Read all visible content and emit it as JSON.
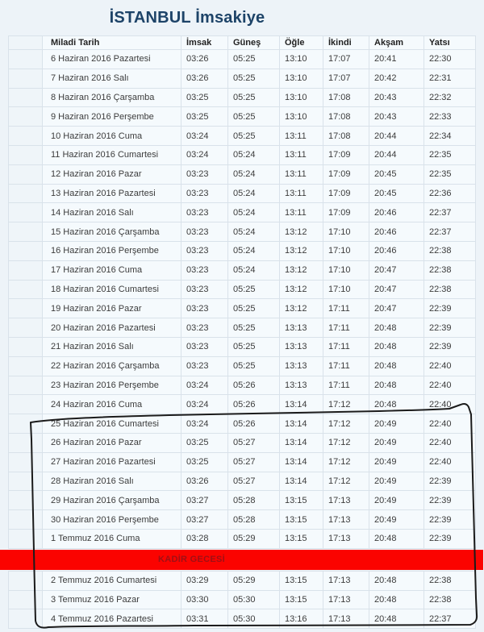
{
  "page": {
    "title": "İSTANBUL İmsakiye"
  },
  "colors": {
    "page_background": "#edf3f8",
    "title_text": "#1d4368",
    "cell_background": "#f5fafd",
    "cell_border": "#d9e2ea",
    "kadir_background": "#fb0300",
    "kadir_text": "#a01015",
    "annotation_stroke": "#1b1b1b"
  },
  "table": {
    "headers": [
      "Miladi Tarih",
      "İmsak",
      "Güneş",
      "Öğle",
      "İkindi",
      "Akşam",
      "Yatsı"
    ],
    "rows_before": [
      [
        "6 Haziran 2016 Pazartesi",
        "03:26",
        "05:25",
        "13:10",
        "17:07",
        "20:41",
        "22:30"
      ],
      [
        "7 Haziran 2016 Salı",
        "03:26",
        "05:25",
        "13:10",
        "17:07",
        "20:42",
        "22:31"
      ],
      [
        "8 Haziran 2016 Çarşamba",
        "03:25",
        "05:25",
        "13:10",
        "17:08",
        "20:43",
        "22:32"
      ],
      [
        "9 Haziran 2016 Perşembe",
        "03:25",
        "05:25",
        "13:10",
        "17:08",
        "20:43",
        "22:33"
      ],
      [
        "10 Haziran 2016 Cuma",
        "03:24",
        "05:25",
        "13:11",
        "17:08",
        "20:44",
        "22:34"
      ],
      [
        "11 Haziran 2016 Cumartesi",
        "03:24",
        "05:24",
        "13:11",
        "17:09",
        "20:44",
        "22:35"
      ],
      [
        "12 Haziran 2016 Pazar",
        "03:23",
        "05:24",
        "13:11",
        "17:09",
        "20:45",
        "22:35"
      ],
      [
        "13 Haziran 2016 Pazartesi",
        "03:23",
        "05:24",
        "13:11",
        "17:09",
        "20:45",
        "22:36"
      ],
      [
        "14 Haziran 2016 Salı",
        "03:23",
        "05:24",
        "13:11",
        "17:09",
        "20:46",
        "22:37"
      ],
      [
        "15 Haziran 2016 Çarşamba",
        "03:23",
        "05:24",
        "13:12",
        "17:10",
        "20:46",
        "22:37"
      ],
      [
        "16 Haziran 2016 Perşembe",
        "03:23",
        "05:24",
        "13:12",
        "17:10",
        "20:46",
        "22:38"
      ],
      [
        "17 Haziran 2016 Cuma",
        "03:23",
        "05:24",
        "13:12",
        "17:10",
        "20:47",
        "22:38"
      ],
      [
        "18 Haziran 2016 Cumartesi",
        "03:23",
        "05:25",
        "13:12",
        "17:10",
        "20:47",
        "22:38"
      ],
      [
        "19 Haziran 2016 Pazar",
        "03:23",
        "05:25",
        "13:12",
        "17:11",
        "20:47",
        "22:39"
      ],
      [
        "20 Haziran 2016 Pazartesi",
        "03:23",
        "05:25",
        "13:13",
        "17:11",
        "20:48",
        "22:39"
      ],
      [
        "21 Haziran 2016 Salı",
        "03:23",
        "05:25",
        "13:13",
        "17:11",
        "20:48",
        "22:39"
      ],
      [
        "22 Haziran 2016 Çarşamba",
        "03:23",
        "05:25",
        "13:13",
        "17:11",
        "20:48",
        "22:40"
      ],
      [
        "23 Haziran 2016 Perşembe",
        "03:24",
        "05:26",
        "13:13",
        "17:11",
        "20:48",
        "22:40"
      ],
      [
        "24 Haziran 2016 Cuma",
        "03:24",
        "05:26",
        "13:14",
        "17:12",
        "20:48",
        "22:40"
      ],
      [
        "25 Haziran 2016 Cumartesi",
        "03:24",
        "05:26",
        "13:14",
        "17:12",
        "20:49",
        "22:40"
      ],
      [
        "26 Haziran 2016 Pazar",
        "03:25",
        "05:27",
        "13:14",
        "17:12",
        "20:49",
        "22:40"
      ],
      [
        "27 Haziran 2016 Pazartesi",
        "03:25",
        "05:27",
        "13:14",
        "17:12",
        "20:49",
        "22:40"
      ],
      [
        "28 Haziran 2016 Salı",
        "03:26",
        "05:27",
        "13:14",
        "17:12",
        "20:49",
        "22:39"
      ],
      [
        "29 Haziran 2016 Çarşamba",
        "03:27",
        "05:28",
        "13:15",
        "17:13",
        "20:49",
        "22:39"
      ],
      [
        "30 Haziran 2016 Perşembe",
        "03:27",
        "05:28",
        "13:15",
        "17:13",
        "20:49",
        "22:39"
      ],
      [
        "1 Temmuz 2016 Cuma",
        "03:28",
        "05:29",
        "13:15",
        "17:13",
        "20:48",
        "22:39"
      ]
    ],
    "special_row": {
      "label": "KADİR GECESİ"
    },
    "rows_after": [
      [
        "2 Temmuz 2016 Cumartesi",
        "03:29",
        "05:29",
        "13:15",
        "17:13",
        "20:48",
        "22:38"
      ],
      [
        "3 Temmuz 2016 Pazar",
        "03:30",
        "05:30",
        "13:15",
        "17:13",
        "20:48",
        "22:38"
      ],
      [
        "4 Temmuz 2016 Pazartesi",
        "03:31",
        "05:30",
        "13:16",
        "17:13",
        "20:48",
        "22:37"
      ]
    ]
  },
  "annotation": {
    "description": "hand-drawn black box circling rows from 25 Haziran 2016 to 4 Temmuz 2016"
  }
}
